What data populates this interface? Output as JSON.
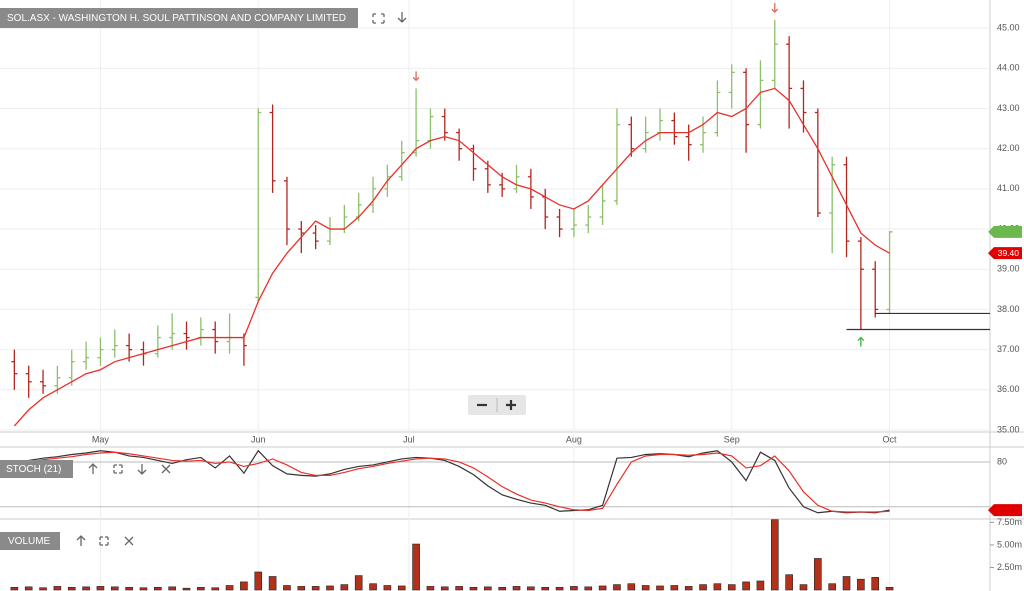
{
  "chart_data": [
    {
      "type": "ohlc",
      "title": "SOL.ASX - WASHINGTON H. SOUL PATTINSON AND COMPANY LIMITED",
      "x": [
        1,
        3,
        5,
        7,
        9,
        11,
        13,
        15,
        17,
        19,
        21,
        23,
        25,
        27,
        29,
        31,
        33,
        35,
        37,
        39,
        41,
        43,
        45,
        47,
        49,
        51,
        53,
        55,
        57,
        59,
        61,
        63,
        65,
        67,
        69,
        71,
        73,
        75,
        77,
        79,
        81,
        83,
        85,
        87,
        89,
        91,
        93,
        95,
        97,
        99,
        101,
        103,
        105,
        107,
        109,
        111,
        113,
        115,
        117,
        119,
        121,
        123
      ],
      "open": [
        36.7,
        36.4,
        36.2,
        36.1,
        36.3,
        36.7,
        36.8,
        37.0,
        37.1,
        37.0,
        36.9,
        37.3,
        37.4,
        37.3,
        37.5,
        37.2,
        37.3,
        38.3,
        42.9,
        41.2,
        40.0,
        39.9,
        39.7,
        40.0,
        40.3,
        40.6,
        41.0,
        41.3,
        41.9,
        42.2,
        42.8,
        42.4,
        42.0,
        41.5,
        41.1,
        41.0,
        41.3,
        40.8,
        40.3,
        40.0,
        40.1,
        40.3,
        40.7,
        42.6,
        42.0,
        42.4,
        42.7,
        42.3,
        42.1,
        42.4,
        43.4,
        43.9,
        42.6,
        43.7,
        44.6,
        43.5,
        42.9,
        40.4,
        41.6,
        39.7,
        39.0,
        38.0
      ],
      "high": [
        37.0,
        36.6,
        36.5,
        36.6,
        37.0,
        37.2,
        37.3,
        37.5,
        37.4,
        37.2,
        37.6,
        37.9,
        37.7,
        37.8,
        37.7,
        37.9,
        37.4,
        43.0,
        43.1,
        41.3,
        40.2,
        40.1,
        40.3,
        40.6,
        40.9,
        41.3,
        41.6,
        42.2,
        43.5,
        43.0,
        43.0,
        42.5,
        42.1,
        41.7,
        41.4,
        41.6,
        41.5,
        41.0,
        40.5,
        40.5,
        40.6,
        41.1,
        43.0,
        42.8,
        42.8,
        43.0,
        42.9,
        42.6,
        42.8,
        43.7,
        44.1,
        44.0,
        44.2,
        45.2,
        44.8,
        43.7,
        43.0,
        41.8,
        41.8,
        39.8,
        39.2,
        39.95
      ],
      "low": [
        36.0,
        35.8,
        35.9,
        35.9,
        36.1,
        36.5,
        36.6,
        36.8,
        36.7,
        36.6,
        36.8,
        37.0,
        37.0,
        37.1,
        36.9,
        36.9,
        36.6,
        38.2,
        40.9,
        39.6,
        39.4,
        39.5,
        39.6,
        39.9,
        40.2,
        40.4,
        40.8,
        41.2,
        41.8,
        42.0,
        42.2,
        41.7,
        41.2,
        40.9,
        40.8,
        40.9,
        40.5,
        40.0,
        39.8,
        39.8,
        39.9,
        40.1,
        40.6,
        41.8,
        41.9,
        42.2,
        42.1,
        41.7,
        41.9,
        42.3,
        43.0,
        41.9,
        42.5,
        43.5,
        42.5,
        42.4,
        40.3,
        39.4,
        39.3,
        37.5,
        37.8,
        37.9
      ],
      "close": [
        36.4,
        36.2,
        36.1,
        36.3,
        36.7,
        36.8,
        37.0,
        37.1,
        37.0,
        36.9,
        37.3,
        37.4,
        37.3,
        37.5,
        37.2,
        37.3,
        37.1,
        42.9,
        41.2,
        40.0,
        39.9,
        39.7,
        40.0,
        40.3,
        40.6,
        41.0,
        41.3,
        41.9,
        42.2,
        42.8,
        42.4,
        42.0,
        41.5,
        41.1,
        41.0,
        41.3,
        40.8,
        40.3,
        40.0,
        40.1,
        40.3,
        40.7,
        42.6,
        42.0,
        42.4,
        42.7,
        42.3,
        42.1,
        42.4,
        43.4,
        43.9,
        42.6,
        43.7,
        44.6,
        43.5,
        42.9,
        40.4,
        41.6,
        39.7,
        39.0,
        38.0,
        39.93
      ],
      "up_color": "#8cc06a",
      "down_color": "#b3261e",
      "ema": {
        "color": "#e8302a",
        "values": [
          35.1,
          35.5,
          35.8,
          36.0,
          36.2,
          36.4,
          36.5,
          36.7,
          36.8,
          36.9,
          37.0,
          37.1,
          37.2,
          37.3,
          37.3,
          37.3,
          37.3,
          38.2,
          38.9,
          39.4,
          39.8,
          40.2,
          40.0,
          40.0,
          40.3,
          40.7,
          41.2,
          41.6,
          42.0,
          42.2,
          42.3,
          42.2,
          41.9,
          41.6,
          41.3,
          41.1,
          41.0,
          40.8,
          40.6,
          40.5,
          40.7,
          41.1,
          41.5,
          41.9,
          42.2,
          42.4,
          42.4,
          42.4,
          42.6,
          42.9,
          42.8,
          43.0,
          43.4,
          43.5,
          43.2,
          42.6,
          42.0,
          41.3,
          40.6,
          39.9,
          39.6,
          39.4
        ]
      },
      "xlim": [
        -1,
        137
      ],
      "ylim": [
        34.95,
        45.7
      ],
      "xticks": [
        {
          "value": 13,
          "label": "May"
        },
        {
          "value": 35,
          "label": "Jun"
        },
        {
          "value": 56,
          "label": "Jul"
        },
        {
          "value": 79,
          "label": "Aug"
        },
        {
          "value": 101,
          "label": "Sep"
        },
        {
          "value": 123,
          "label": "Oct"
        }
      ],
      "yticks": [
        {
          "value": 35,
          "label": "35.00"
        },
        {
          "value": 36,
          "label": "36.00"
        },
        {
          "value": 37,
          "label": "37.00"
        },
        {
          "value": 38,
          "label": "38.00"
        },
        {
          "value": 39,
          "label": "39.00"
        },
        {
          "value": 40,
          "label": "40.00"
        },
        {
          "value": 41,
          "label": "41.00"
        },
        {
          "value": 42,
          "label": "42.00"
        },
        {
          "value": 43,
          "label": "43.00"
        },
        {
          "value": 44,
          "label": "44.00"
        },
        {
          "value": 45,
          "label": "45.00"
        }
      ],
      "grid": true,
      "tags": [
        {
          "value": 39.93,
          "color": "#6cb84c"
        },
        {
          "value": 39.4,
          "label": "39.40",
          "color": "#e00000"
        }
      ],
      "support_lines": [
        {
          "value": 37.9,
          "x_from": 121
        },
        {
          "value": 37.5,
          "x_from": 117
        }
      ],
      "signals": [
        {
          "x": 57,
          "value": 43.8,
          "direction": "down",
          "color": "#e06a5a"
        },
        {
          "x": 107,
          "value": 45.5,
          "direction": "down",
          "color": "#e06a5a"
        },
        {
          "x": 119,
          "value": 37.2,
          "direction": "up",
          "color": "#3cb83c"
        }
      ]
    },
    {
      "type": "line",
      "title": "STOCH (21)",
      "x": [
        1,
        3,
        5,
        7,
        9,
        11,
        13,
        15,
        17,
        19,
        21,
        23,
        25,
        27,
        29,
        31,
        33,
        35,
        37,
        39,
        41,
        43,
        45,
        47,
        49,
        51,
        53,
        55,
        57,
        59,
        61,
        63,
        65,
        67,
        69,
        71,
        73,
        75,
        77,
        79,
        81,
        83,
        85,
        87,
        89,
        91,
        93,
        95,
        97,
        99,
        101,
        103,
        105,
        107,
        109,
        111,
        113,
        115,
        117,
        119,
        121,
        123
      ],
      "series": [
        {
          "color": "#333333",
          "values": [
            80,
            82,
            85,
            87,
            90,
            92,
            95,
            93,
            88,
            86,
            82,
            78,
            83,
            86,
            72,
            88,
            65,
            95,
            75,
            64,
            62,
            61,
            64,
            70,
            74,
            76,
            80,
            84,
            86,
            85,
            82,
            74,
            63,
            48,
            36,
            30,
            25,
            22,
            14,
            15,
            16,
            22,
            85,
            86,
            90,
            91,
            90,
            87,
            92,
            95,
            80,
            55,
            93,
            82,
            45,
            20,
            12,
            14,
            12,
            13,
            12,
            15.56
          ]
        },
        {
          "color": "#e8302a",
          "values": [
            78,
            80,
            83,
            85,
            87,
            90,
            92,
            93,
            91,
            88,
            85,
            82,
            81,
            82,
            78,
            80,
            74,
            78,
            84,
            76,
            66,
            62,
            62,
            66,
            71,
            74,
            78,
            81,
            84,
            85,
            84,
            80,
            72,
            60,
            47,
            37,
            29,
            25,
            20,
            16,
            15,
            18,
            50,
            80,
            88,
            90,
            90,
            89,
            90,
            92,
            88,
            72,
            75,
            88,
            68,
            40,
            22,
            14,
            13,
            13,
            13,
            14
          ]
        }
      ],
      "xlim": [
        -1,
        137
      ],
      "ylim": [
        5,
        100
      ],
      "yticks": [
        80
      ],
      "reference_lines": [
        80,
        20
      ],
      "tags": [
        {
          "value": 15.56,
          "color": "#e00000"
        }
      ]
    },
    {
      "type": "bar",
      "title": "VOLUME",
      "x": [
        1,
        3,
        5,
        7,
        9,
        11,
        13,
        15,
        17,
        19,
        21,
        23,
        25,
        27,
        29,
        31,
        33,
        35,
        37,
        39,
        41,
        43,
        45,
        47,
        49,
        51,
        53,
        55,
        57,
        59,
        61,
        63,
        65,
        67,
        69,
        71,
        73,
        75,
        77,
        79,
        81,
        83,
        85,
        87,
        89,
        91,
        93,
        95,
        97,
        99,
        101,
        103,
        105,
        107,
        109,
        111,
        113,
        115,
        117,
        119,
        121,
        123
      ],
      "values": [
        300000,
        350000,
        250000,
        400000,
        300000,
        350000,
        400000,
        350000,
        300000,
        250000,
        300000,
        350000,
        200000,
        300000,
        250000,
        500000,
        900000,
        2000000,
        1500000,
        500000,
        400000,
        400000,
        450000,
        600000,
        1600000,
        700000,
        500000,
        450000,
        5100000,
        400000,
        350000,
        400000,
        300000,
        350000,
        300000,
        400000,
        350000,
        300000,
        300000,
        400000,
        350000,
        450000,
        600000,
        700000,
        500000,
        450000,
        500000,
        400000,
        600000,
        700000,
        600000,
        900000,
        1000000,
        7800000,
        1700000,
        600000,
        3500000,
        700000,
        1500000,
        1200000,
        1400000,
        300000
      ],
      "color": "#b3301a",
      "xlim": [
        -1,
        137
      ],
      "ylim": [
        0,
        8100000
      ],
      "yticks": [
        {
          "value": 2500000,
          "label": "2.50m"
        },
        {
          "value": 5000000,
          "label": "5.00m"
        },
        {
          "value": 7500000,
          "label": "7.50m"
        }
      ]
    }
  ]
}
